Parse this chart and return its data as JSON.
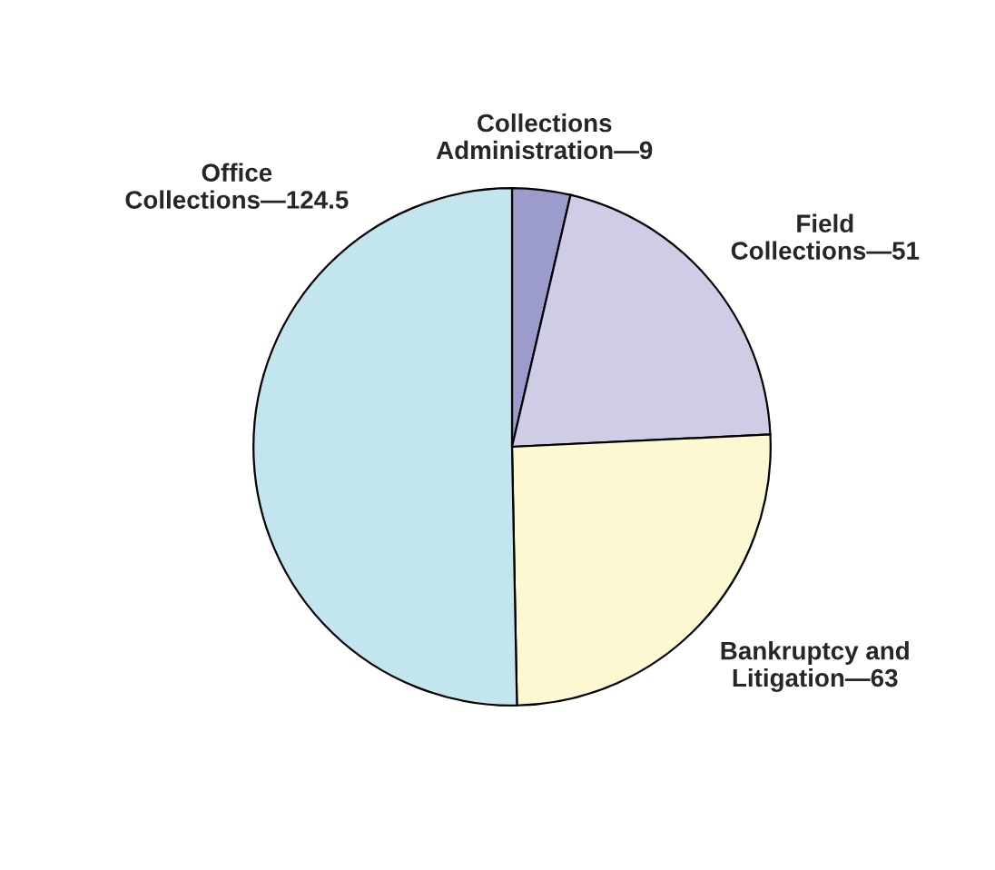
{
  "chart_data": {
    "type": "pie",
    "categories": [
      "Collections\nAdministration—9",
      "Field\nCollections—51",
      "Bankruptcy and\nLitigation—63",
      "Office\nCollections—124.5"
    ],
    "values": [
      9,
      51,
      63,
      124.5
    ],
    "colors": [
      "#9b9bcc",
      "#cfcde6",
      "#fbf8d2",
      "#c2e5ee"
    ]
  }
}
